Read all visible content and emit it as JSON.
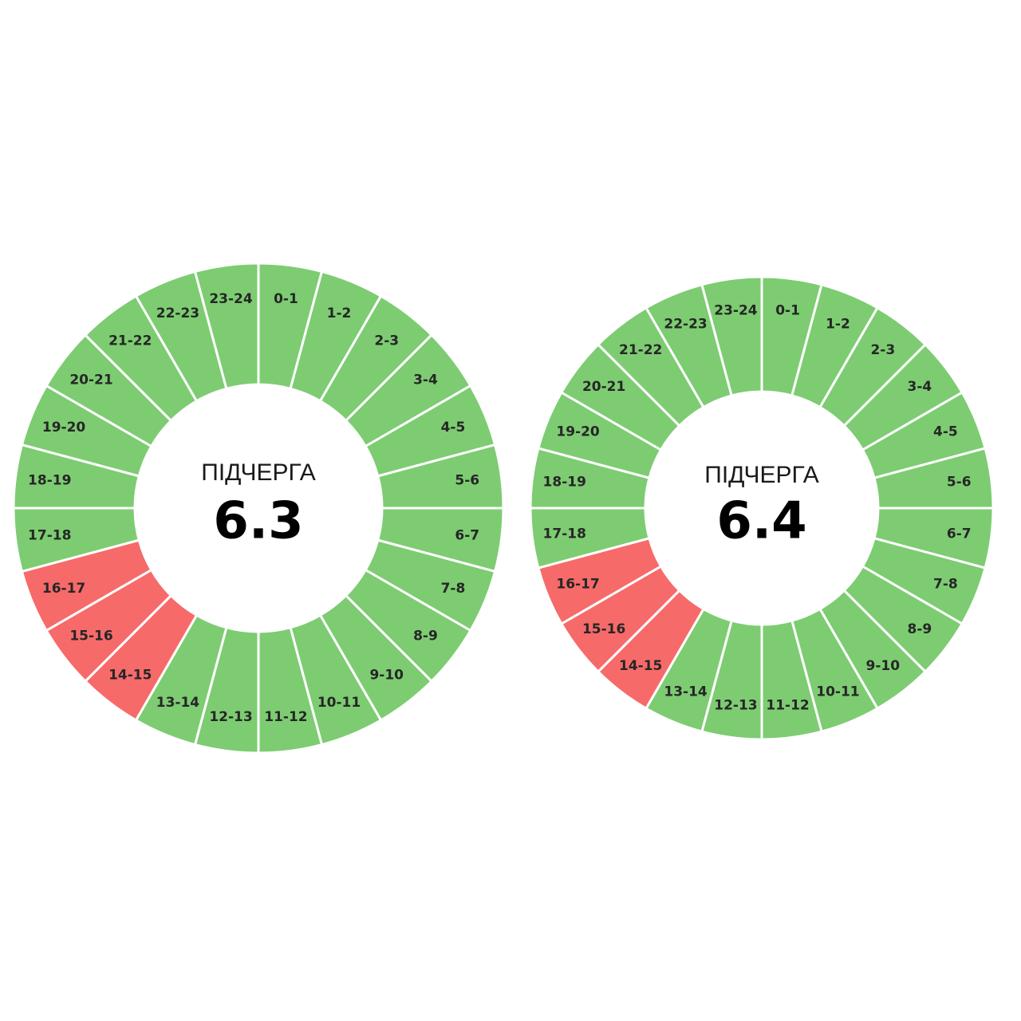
{
  "dials": [
    {
      "title": "ПІДЧЕРГА",
      "number": "6.3",
      "segments": [
        {
          "label": "0-1",
          "color": "#7dcc72"
        },
        {
          "label": "1-2",
          "color": "#7dcc72"
        },
        {
          "label": "2-3",
          "color": "#7dcc72"
        },
        {
          "label": "3-4",
          "color": "#7dcc72"
        },
        {
          "label": "4-5",
          "color": "#7dcc72"
        },
        {
          "label": "5-6",
          "color": "#7dcc72"
        },
        {
          "label": "6-7",
          "color": "#7dcc72"
        },
        {
          "label": "7-8",
          "color": "#7dcc72"
        },
        {
          "label": "8-9",
          "color": "#7dcc72"
        },
        {
          "label": "9-10",
          "color": "#7dcc72"
        },
        {
          "label": "10-11",
          "color": "#7dcc72"
        },
        {
          "label": "11-12",
          "color": "#7dcc72"
        },
        {
          "label": "12-13",
          "color": "#7dcc72"
        },
        {
          "label": "13-14",
          "color": "#7dcc72"
        },
        {
          "label": "14-15",
          "color": "#f76a6a"
        },
        {
          "label": "15-16",
          "color": "#f76a6a"
        },
        {
          "label": "16-17",
          "color": "#f76a6a"
        },
        {
          "label": "17-18",
          "color": "#7dcc72"
        },
        {
          "label": "18-19",
          "color": "#7dcc72"
        },
        {
          "label": "19-20",
          "color": "#7dcc72"
        },
        {
          "label": "20-21",
          "color": "#7dcc72"
        },
        {
          "label": "21-22",
          "color": "#7dcc72"
        },
        {
          "label": "22-23",
          "color": "#7dcc72"
        },
        {
          "label": "23-24",
          "color": "#7dcc72"
        }
      ]
    },
    {
      "title": "ПІДЧЕРГА",
      "number": "6.4",
      "segments": [
        {
          "label": "0-1",
          "color": "#7dcc72"
        },
        {
          "label": "1-2",
          "color": "#7dcc72"
        },
        {
          "label": "2-3",
          "color": "#7dcc72"
        },
        {
          "label": "3-4",
          "color": "#7dcc72"
        },
        {
          "label": "4-5",
          "color": "#7dcc72"
        },
        {
          "label": "5-6",
          "color": "#7dcc72"
        },
        {
          "label": "6-7",
          "color": "#7dcc72"
        },
        {
          "label": "7-8",
          "color": "#7dcc72"
        },
        {
          "label": "8-9",
          "color": "#7dcc72"
        },
        {
          "label": "9-10",
          "color": "#7dcc72"
        },
        {
          "label": "10-11",
          "color": "#7dcc72"
        },
        {
          "label": "11-12",
          "color": "#7dcc72"
        },
        {
          "label": "12-13",
          "color": "#7dcc72"
        },
        {
          "label": "13-14",
          "color": "#7dcc72"
        },
        {
          "label": "14-15",
          "color": "#f76a6a"
        },
        {
          "label": "15-16",
          "color": "#f76a6a"
        },
        {
          "label": "16-17",
          "color": "#f76a6a"
        },
        {
          "label": "17-18",
          "color": "#7dcc72"
        },
        {
          "label": "18-19",
          "color": "#7dcc72"
        },
        {
          "label": "19-20",
          "color": "#7dcc72"
        },
        {
          "label": "20-21",
          "color": "#7dcc72"
        },
        {
          "label": "21-22",
          "color": "#7dcc72"
        },
        {
          "label": "22-23",
          "color": "#7dcc72"
        },
        {
          "label": "23-24",
          "color": "#7dcc72"
        }
      ]
    }
  ]
}
